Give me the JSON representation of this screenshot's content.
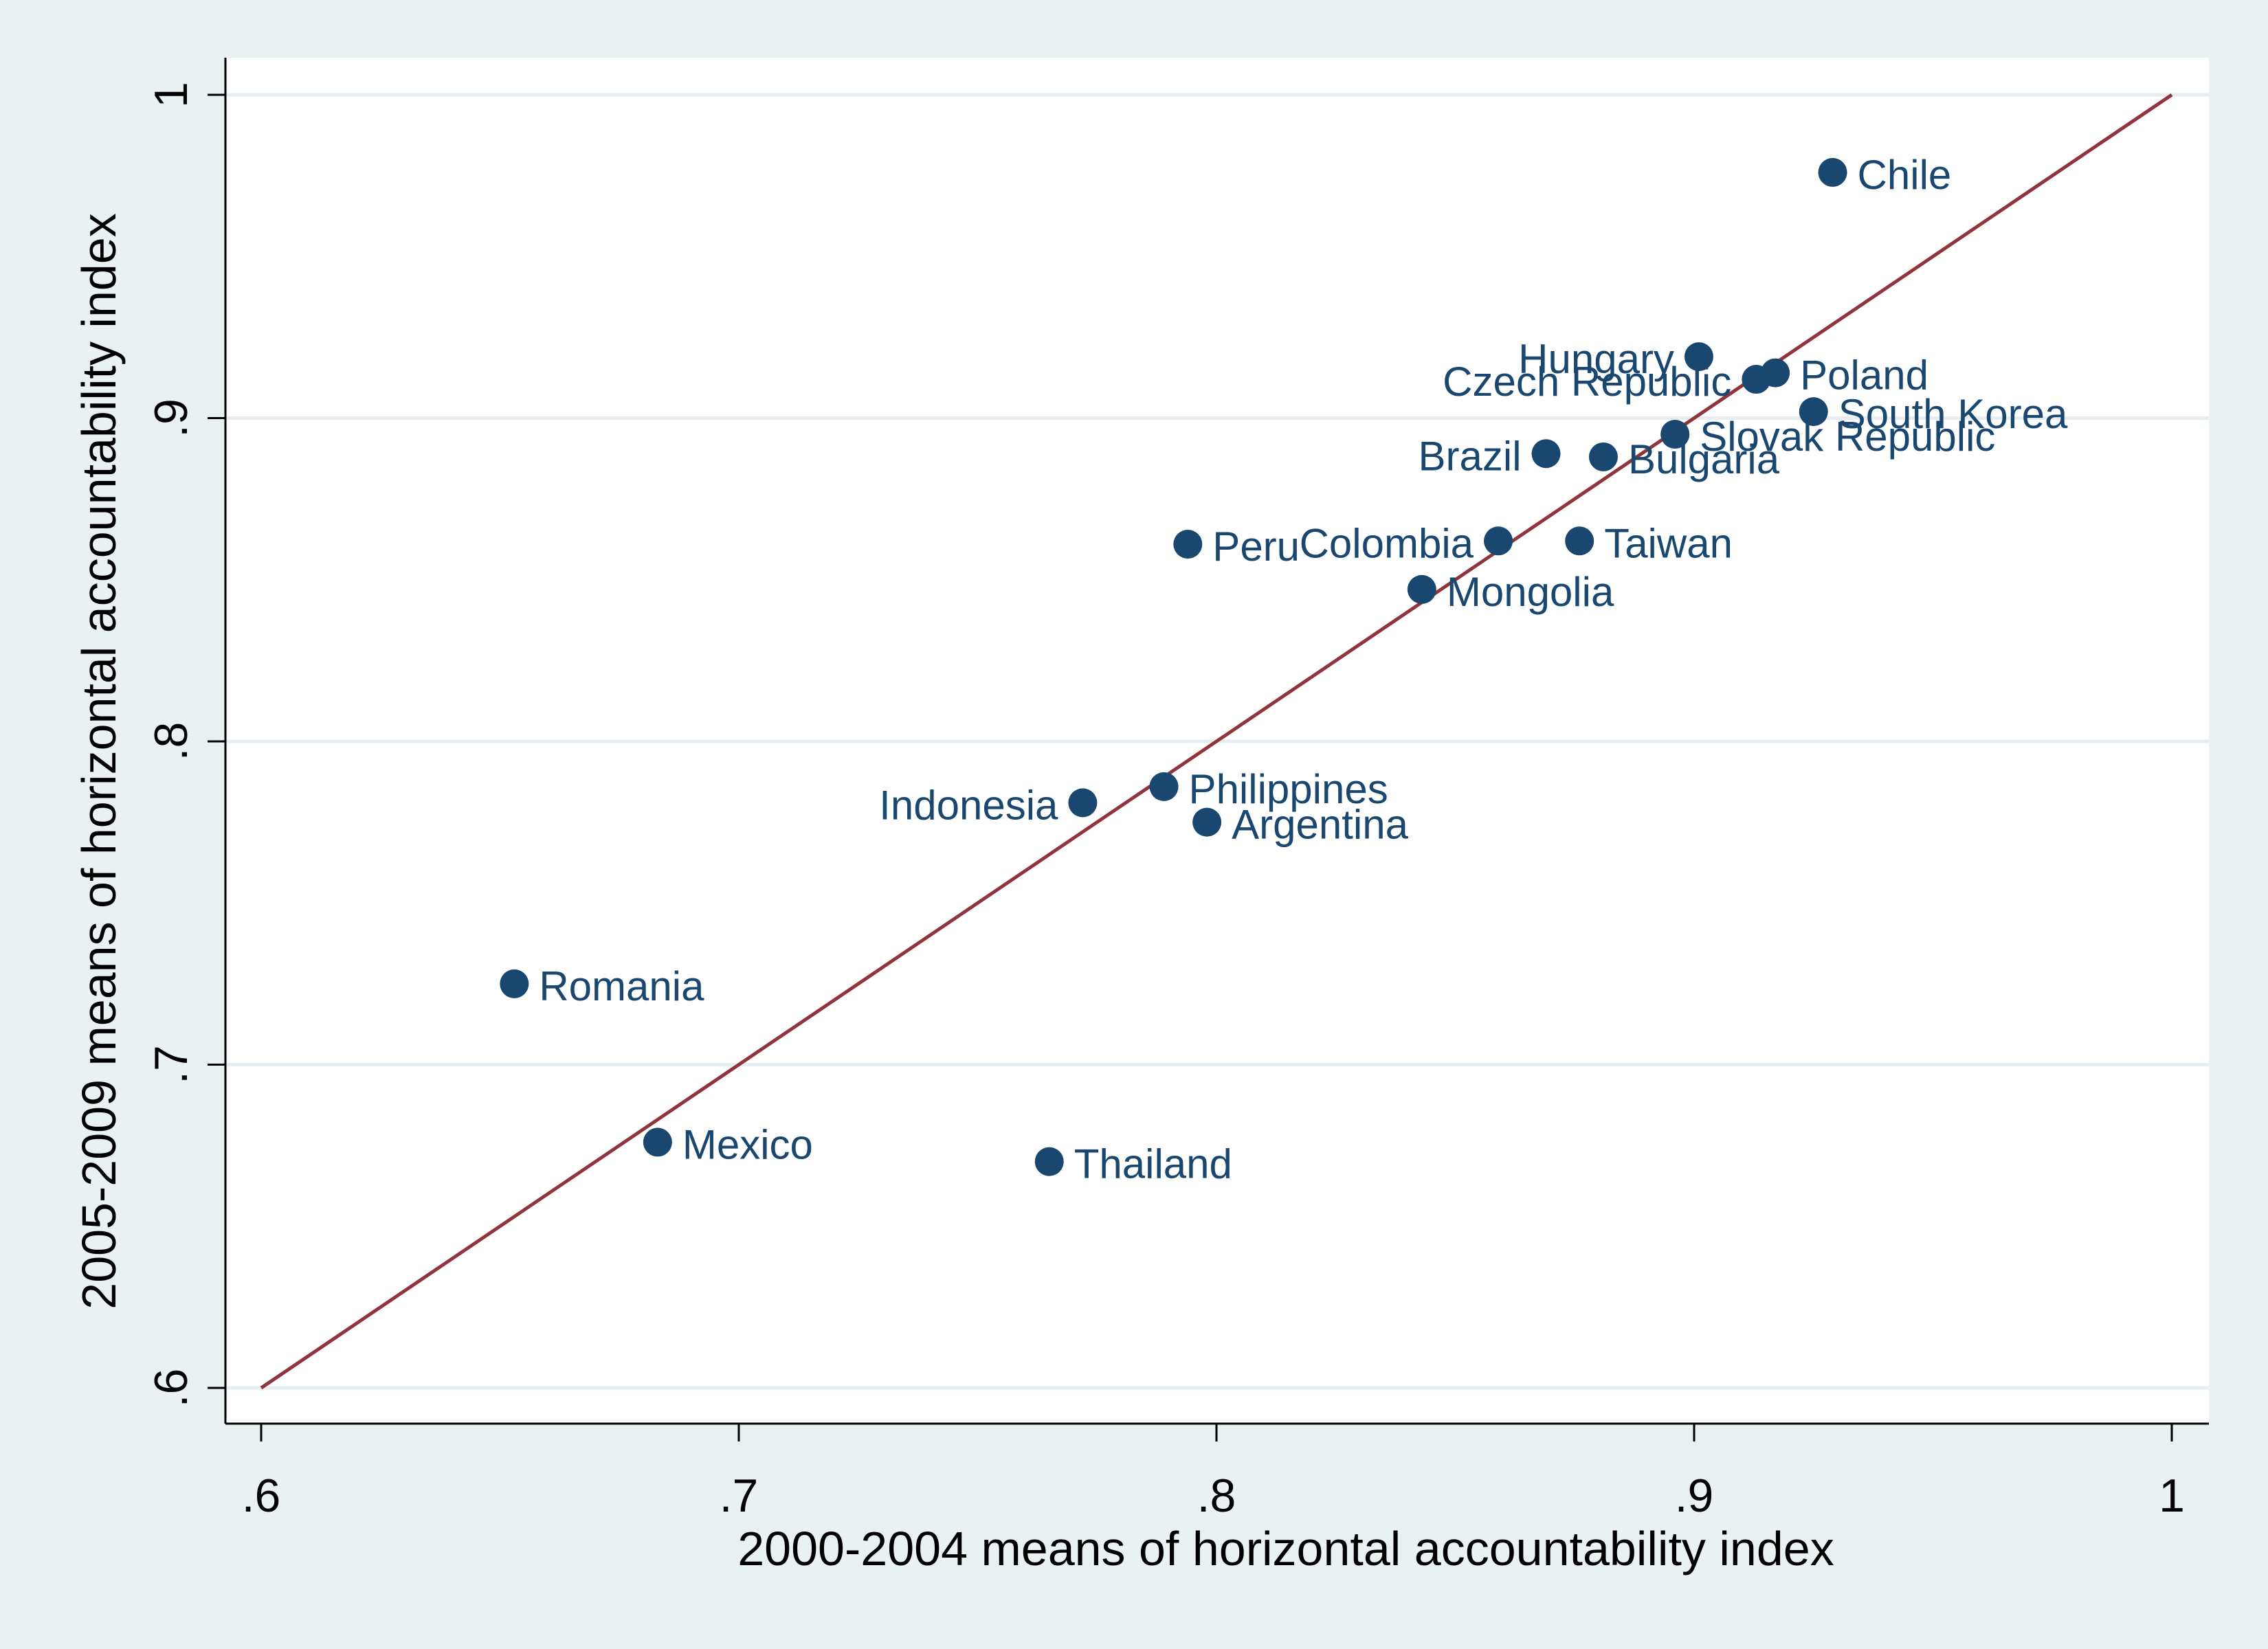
{
  "colors": {
    "background": "#eaf1f3",
    "plot_background": "#ffffff",
    "gridline": "#e6eef1",
    "axis": "#000000",
    "marker": "#1a476f",
    "label": "#1a476f",
    "reference_line": "#90353b"
  },
  "chart_data": {
    "type": "scatter",
    "title": "",
    "xlabel": "2000-2004 means of horizontal accountability index",
    "ylabel": "2005-2009 means of horizontal accountability index",
    "xlim": [
      0.6,
      1.0
    ],
    "ylim": [
      0.6,
      1.0
    ],
    "x_ticks": [
      0.6,
      0.7,
      0.8,
      0.9,
      1.0
    ],
    "x_tick_labels": [
      ".6",
      ".7",
      ".8",
      ".9",
      "1"
    ],
    "y_ticks": [
      0.6,
      0.7,
      0.8,
      0.9,
      1.0
    ],
    "y_tick_labels": [
      ".6",
      ".7",
      ".8",
      ".9",
      "1"
    ],
    "grid": "horizontal",
    "reference_line": {
      "from": [
        0.6,
        0.6
      ],
      "to": [
        1.0,
        1.0
      ]
    },
    "points": [
      {
        "label": "Chile",
        "x": 0.929,
        "y": 0.976,
        "label_side": "right"
      },
      {
        "label": "Hungary",
        "x": 0.901,
        "y": 0.919,
        "label_side": "left"
      },
      {
        "label": "Czech Republic",
        "x": 0.913,
        "y": 0.912,
        "label_side": "left"
      },
      {
        "label": "Poland",
        "x": 0.917,
        "y": 0.914,
        "label_side": "right"
      },
      {
        "label": "South Korea",
        "x": 0.925,
        "y": 0.902,
        "label_side": "right"
      },
      {
        "label": "Slovak Republic",
        "x": 0.896,
        "y": 0.895,
        "label_side": "right"
      },
      {
        "label": "Brazil",
        "x": 0.869,
        "y": 0.889,
        "label_side": "left"
      },
      {
        "label": "Bulgaria",
        "x": 0.881,
        "y": 0.888,
        "label_side": "right"
      },
      {
        "label": "Peru",
        "x": 0.794,
        "y": 0.861,
        "label_side": "right"
      },
      {
        "label": "Colombia",
        "x": 0.859,
        "y": 0.862,
        "label_side": "left"
      },
      {
        "label": "Taiwan",
        "x": 0.876,
        "y": 0.862,
        "label_side": "right"
      },
      {
        "label": "Mongolia",
        "x": 0.843,
        "y": 0.847,
        "label_side": "right"
      },
      {
        "label": "Indonesia",
        "x": 0.772,
        "y": 0.781,
        "label_side": "left"
      },
      {
        "label": "Philippines",
        "x": 0.789,
        "y": 0.786,
        "label_side": "right"
      },
      {
        "label": "Argentina",
        "x": 0.798,
        "y": 0.775,
        "label_side": "right"
      },
      {
        "label": "Romania",
        "x": 0.653,
        "y": 0.725,
        "label_side": "right"
      },
      {
        "label": "Mexico",
        "x": 0.683,
        "y": 0.676,
        "label_side": "right"
      },
      {
        "label": "Thailand",
        "x": 0.765,
        "y": 0.67,
        "label_side": "right"
      }
    ]
  }
}
